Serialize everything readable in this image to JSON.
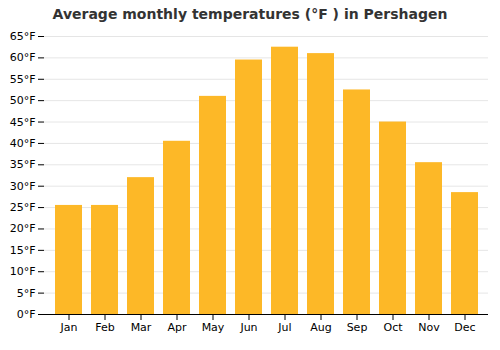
{
  "chart_data": {
    "type": "bar",
    "title": "Average monthly temperatures (°F ) in Pershagen",
    "categories": [
      "Jan",
      "Feb",
      "Mar",
      "Apr",
      "May",
      "Jun",
      "Jul",
      "Aug",
      "Sep",
      "Oct",
      "Nov",
      "Dec"
    ],
    "values": [
      25.5,
      25.5,
      32,
      40.5,
      51,
      59.5,
      62.5,
      61,
      52.5,
      45,
      35.5,
      28.5
    ],
    "color": "#FDB827",
    "ylim": [
      0,
      65
    ],
    "yticks": [
      {
        "value": 0,
        "label": "0°F"
      },
      {
        "value": 5,
        "label": "5°F"
      },
      {
        "value": 10,
        "label": "10°F"
      },
      {
        "value": 15,
        "label": "15°F"
      },
      {
        "value": 20,
        "label": "20°F"
      },
      {
        "value": 25,
        "label": "25°F"
      },
      {
        "value": 30,
        "label": "30°F"
      },
      {
        "value": 35,
        "label": "35°F"
      },
      {
        "value": 40,
        "label": "40°F"
      },
      {
        "value": 45,
        "label": "45°F"
      },
      {
        "value": 50,
        "label": "50°F"
      },
      {
        "value": 55,
        "label": "55°F"
      },
      {
        "value": 60,
        "label": "60°F"
      },
      {
        "value": 65,
        "label": "65°F"
      }
    ],
    "grid": true
  }
}
